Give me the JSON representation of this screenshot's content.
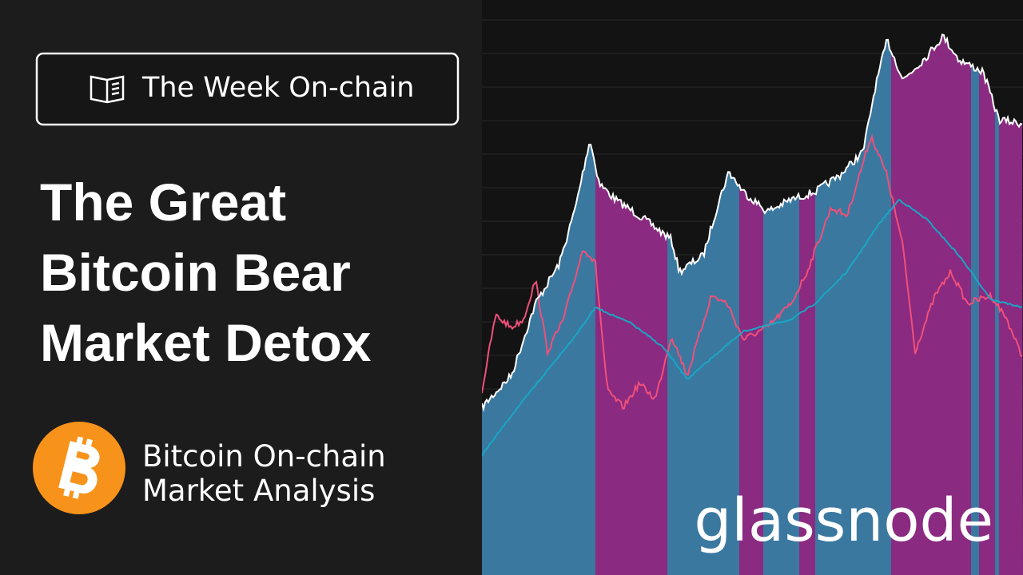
{
  "badge": {
    "label": "The Week On-chain"
  },
  "title": {
    "lines": [
      "The Great",
      "Bitcoin Bear",
      "Market Detox"
    ]
  },
  "subtitle": {
    "lines": [
      "Bitcoin On-chain",
      "Market Analysis"
    ]
  },
  "brand": {
    "logo": "glassnode"
  }
}
